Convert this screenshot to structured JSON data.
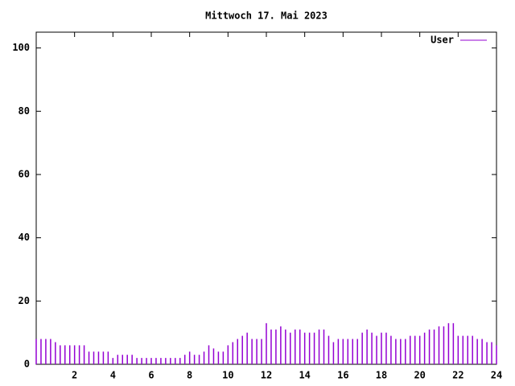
{
  "chart_data": {
    "type": "impulse",
    "title": "Mittwoch 17. Mai 2023",
    "series": [
      {
        "name": "User",
        "color": "#9400d3",
        "x": [
          0,
          0.25,
          0.5,
          0.75,
          1,
          1.25,
          1.5,
          1.75,
          2,
          2.25,
          2.5,
          2.75,
          3,
          3.25,
          3.5,
          3.75,
          4,
          4.25,
          4.5,
          4.75,
          5,
          5.25,
          5.5,
          5.75,
          6,
          6.25,
          6.5,
          6.75,
          7,
          7.25,
          7.5,
          7.75,
          8,
          8.25,
          8.5,
          8.75,
          9,
          9.25,
          9.5,
          9.75,
          10,
          10.25,
          10.5,
          10.75,
          11,
          11.25,
          11.5,
          11.75,
          12,
          12.25,
          12.5,
          12.75,
          13,
          13.25,
          13.5,
          13.75,
          14,
          14.25,
          14.5,
          14.75,
          15,
          15.25,
          15.5,
          15.75,
          16,
          16.25,
          16.5,
          16.75,
          17,
          17.25,
          17.5,
          17.75,
          18,
          18.25,
          18.5,
          18.75,
          19,
          19.25,
          19.5,
          19.75,
          20,
          20.25,
          20.5,
          20.75,
          21,
          21.25,
          21.5,
          21.75,
          22,
          22.25,
          22.5,
          22.75,
          23,
          23.25,
          23.5,
          23.75,
          24
        ],
        "values": [
          8,
          8,
          8,
          8,
          7,
          6,
          6,
          6,
          6,
          6,
          6,
          4,
          4,
          4,
          4,
          4,
          2,
          3,
          3,
          3,
          3,
          2,
          2,
          2,
          2,
          2,
          2,
          2,
          2,
          2,
          2,
          3,
          4,
          3,
          3,
          4,
          6,
          5,
          4,
          4,
          6,
          7,
          8,
          9,
          10,
          8,
          8,
          8,
          13,
          11,
          11,
          12,
          11,
          10,
          11,
          11,
          10,
          10,
          10,
          11,
          11,
          9,
          7,
          8,
          8,
          8,
          8,
          8,
          10,
          11,
          10,
          9,
          10,
          10,
          9,
          8,
          8,
          8,
          9,
          9,
          9,
          10,
          11,
          11,
          12,
          12,
          13,
          13,
          9,
          9,
          9,
          9,
          8,
          8,
          7,
          7,
          6
        ]
      }
    ],
    "xlim": [
      0,
      24
    ],
    "ylim": [
      0,
      105
    ],
    "xticks": [
      2,
      4,
      6,
      8,
      10,
      12,
      14,
      16,
      18,
      20,
      22,
      24
    ],
    "yticks": [
      0,
      20,
      40,
      60,
      80,
      100
    ],
    "legend": "top-right"
  }
}
